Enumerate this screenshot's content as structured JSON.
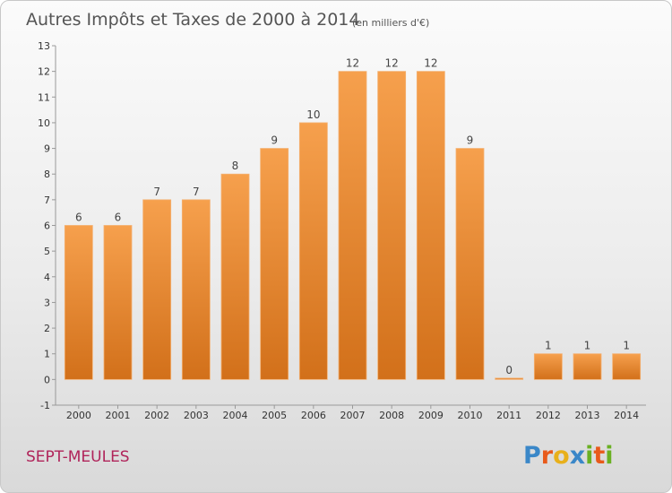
{
  "chart_data": {
    "type": "bar",
    "title": "Autres Impôts et Taxes de 2000 à 2014",
    "subtitle": "(en milliers d'€)",
    "categories": [
      "2000",
      "2001",
      "2002",
      "2003",
      "2004",
      "2005",
      "2006",
      "2007",
      "2008",
      "2009",
      "2010",
      "2011",
      "2012",
      "2013",
      "2014"
    ],
    "values": [
      6,
      6,
      7,
      7,
      8,
      9,
      10,
      12,
      12,
      12,
      9,
      0,
      1,
      1,
      1
    ],
    "ylim": [
      -1,
      13
    ],
    "yticks": [
      -1,
      0,
      1,
      2,
      3,
      4,
      5,
      6,
      7,
      8,
      9,
      10,
      11,
      12,
      13
    ],
    "grid": false,
    "bar_color": "#f0922e"
  },
  "footer": {
    "commune": "SEPT-MEULES",
    "logo_letters": [
      "P",
      "r",
      "o",
      "x",
      "i",
      "t",
      "i"
    ],
    "logo_colors": [
      "#3a87c8",
      "#e85a1b",
      "#e8b01b",
      "#3a87c8",
      "#6ab023",
      "#e85a1b",
      "#6ab023"
    ]
  }
}
